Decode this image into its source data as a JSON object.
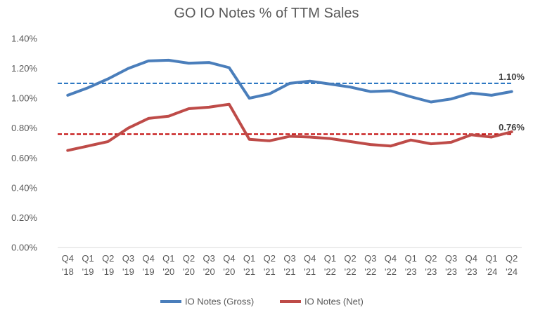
{
  "chart_data": {
    "type": "line",
    "title": "GO IO Notes % of TTM Sales",
    "xlabel": "",
    "ylabel": "",
    "ylim": [
      0,
      1.4
    ],
    "y_ticks": [
      "0.00%",
      "0.20%",
      "0.40%",
      "0.60%",
      "0.80%",
      "1.00%",
      "1.20%",
      "1.40%"
    ],
    "grid": false,
    "legend_position": "bottom",
    "categories": [
      [
        "Q4",
        "'18"
      ],
      [
        "Q1",
        "'19"
      ],
      [
        "Q2",
        "'19"
      ],
      [
        "Q3",
        "'19"
      ],
      [
        "Q4",
        "'19"
      ],
      [
        "Q1",
        "'20"
      ],
      [
        "Q2",
        "'20"
      ],
      [
        "Q3",
        "'20"
      ],
      [
        "Q4",
        "'20"
      ],
      [
        "Q1",
        "'21"
      ],
      [
        "Q2",
        "'21"
      ],
      [
        "Q3",
        "'21"
      ],
      [
        "Q4",
        "'21"
      ],
      [
        "Q1",
        "'22"
      ],
      [
        "Q2",
        "'22"
      ],
      [
        "Q3",
        "'22"
      ],
      [
        "Q4",
        "'22"
      ],
      [
        "Q1",
        "'23"
      ],
      [
        "Q2",
        "'23"
      ],
      [
        "Q3",
        "'23"
      ],
      [
        "Q4",
        "'23"
      ],
      [
        "Q1",
        "'24"
      ],
      [
        "Q2",
        "'24"
      ]
    ],
    "series": [
      {
        "name": "IO Notes (Gross)",
        "color": "#4a7ebb",
        "values": [
          1.02,
          1.07,
          1.13,
          1.2,
          1.25,
          1.255,
          1.235,
          1.24,
          1.205,
          1.0,
          1.03,
          1.1,
          1.115,
          1.095,
          1.075,
          1.045,
          1.05,
          1.01,
          0.975,
          0.995,
          1.035,
          1.02,
          1.045
        ]
      },
      {
        "name": "IO Notes (Net)",
        "color": "#be4b48",
        "values": [
          0.65,
          0.68,
          0.71,
          0.8,
          0.865,
          0.88,
          0.93,
          0.94,
          0.96,
          0.725,
          0.715,
          0.745,
          0.74,
          0.73,
          0.71,
          0.69,
          0.68,
          0.72,
          0.695,
          0.705,
          0.755,
          0.74,
          0.775
        ]
      }
    ],
    "reference_lines": [
      {
        "value": 1.1,
        "label": "1.10%",
        "color": "#1f6fbf"
      },
      {
        "value": 0.76,
        "label": "0.76%",
        "color": "#c00000"
      }
    ]
  }
}
